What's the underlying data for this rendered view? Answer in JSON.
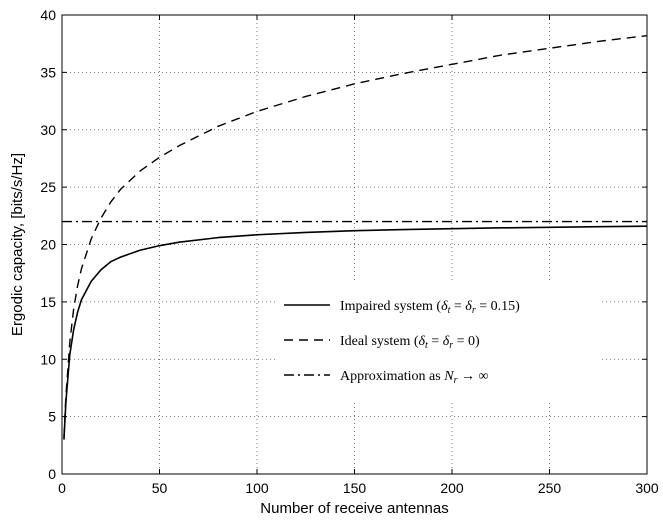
{
  "chart_data": {
    "type": "line",
    "title": "",
    "xlabel": "Number of receive antennas",
    "ylabel": "Ergodic capacity, [bits/s/Hz]",
    "xlim": [
      0,
      300
    ],
    "ylim": [
      0,
      40
    ],
    "xticks": [
      0,
      50,
      100,
      150,
      200,
      250,
      300
    ],
    "yticks": [
      0,
      5,
      10,
      15,
      20,
      25,
      30,
      35,
      40
    ],
    "grid": true,
    "legend_position": "lower-right",
    "series": [
      {
        "name": "Impaired system (δ_t = δ_r = 0.15)",
        "style": "solid",
        "x": [
          1,
          2,
          4,
          6,
          8,
          10,
          15,
          20,
          25,
          30,
          40,
          50,
          60,
          80,
          100,
          125,
          150,
          175,
          200,
          225,
          250,
          275,
          300
        ],
        "y": [
          3.0,
          6.3,
          10.4,
          12.6,
          14.1,
          15.2,
          16.8,
          17.8,
          18.5,
          18.9,
          19.5,
          19.9,
          20.2,
          20.6,
          20.85,
          21.05,
          21.2,
          21.3,
          21.38,
          21.45,
          21.5,
          21.55,
          21.6
        ]
      },
      {
        "name": "Ideal system (δ_t = δ_r = 0)",
        "style": "dashed",
        "x": [
          1,
          2,
          4,
          6,
          8,
          10,
          15,
          20,
          25,
          30,
          40,
          50,
          60,
          80,
          100,
          125,
          150,
          175,
          200,
          225,
          250,
          275,
          300
        ],
        "y": [
          3.2,
          6.8,
          11.5,
          14.4,
          16.4,
          17.9,
          20.5,
          22.3,
          23.7,
          24.8,
          26.4,
          27.6,
          28.6,
          30.3,
          31.6,
          32.9,
          34.0,
          34.9,
          35.7,
          36.5,
          37.1,
          37.7,
          38.2
        ]
      },
      {
        "name": "Approximation as N_r → ∞",
        "style": "dashdot",
        "x": [
          0,
          300
        ],
        "y": [
          22.0,
          22.0
        ]
      }
    ]
  }
}
